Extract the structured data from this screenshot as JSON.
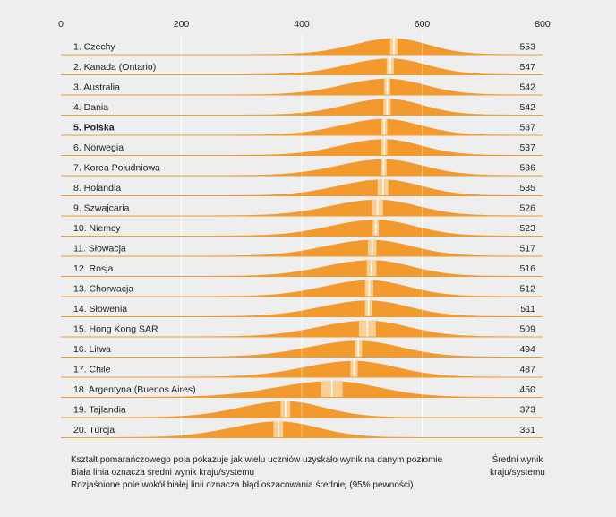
{
  "chart_data": {
    "type": "area",
    "xlim": [
      0,
      800
    ],
    "x_ticks": [
      "0",
      "200",
      "400",
      "600",
      "800"
    ],
    "grid": true,
    "colors": {
      "fill": "#f29a2e",
      "mean_line": "#ffffff",
      "confidence_band": "#fbd9a8",
      "grid": "#ffffff",
      "baseline": "#f29a2e"
    },
    "series": [
      {
        "name": "1. Czechy",
        "mean": 553,
        "ci": 6,
        "sd": 62,
        "bold": false
      },
      {
        "name": "2. Kanada (Ontario)",
        "mean": 547,
        "ci": 6,
        "sd": 66,
        "bold": false
      },
      {
        "name": "3. Australia",
        "mean": 542,
        "ci": 5,
        "sd": 68,
        "bold": false
      },
      {
        "name": "4. Dania",
        "mean": 542,
        "ci": 6,
        "sd": 64,
        "bold": false
      },
      {
        "name": "5. Polska",
        "mean": 537,
        "ci": 5,
        "sd": 66,
        "bold": true
      },
      {
        "name": "6. Norwegia",
        "mean": 537,
        "ci": 5,
        "sd": 66,
        "bold": false
      },
      {
        "name": "7. Korea Południowa",
        "mean": 536,
        "ci": 5,
        "sd": 70,
        "bold": false
      },
      {
        "name": "8. Holandia",
        "mean": 535,
        "ci": 9,
        "sd": 68,
        "bold": false
      },
      {
        "name": "9. Szwajcaria",
        "mean": 526,
        "ci": 9,
        "sd": 72,
        "bold": false
      },
      {
        "name": "10. Niemcy",
        "mean": 523,
        "ci": 5,
        "sd": 70,
        "bold": false
      },
      {
        "name": "11. Słowacja",
        "mean": 517,
        "ci": 7,
        "sd": 72,
        "bold": false
      },
      {
        "name": "12. Rosja",
        "mean": 516,
        "ci": 8,
        "sd": 72,
        "bold": false
      },
      {
        "name": "13. Chorwacja",
        "mean": 512,
        "ci": 7,
        "sd": 70,
        "bold": false
      },
      {
        "name": "14. Słowenia",
        "mean": 511,
        "ci": 6,
        "sd": 72,
        "bold": false
      },
      {
        "name": "15. Hong Kong SAR",
        "mean": 509,
        "ci": 14,
        "sd": 74,
        "bold": false
      },
      {
        "name": "16. Litwa",
        "mean": 494,
        "ci": 6,
        "sd": 76,
        "bold": false
      },
      {
        "name": "17. Chile",
        "mean": 487,
        "ci": 6,
        "sd": 76,
        "bold": false
      },
      {
        "name": "18. Argentyna (Buenos Aires)",
        "mean": 450,
        "ci": 18,
        "sd": 85,
        "bold": false
      },
      {
        "name": "19. Tajlandia",
        "mean": 373,
        "ci": 8,
        "sd": 70,
        "bold": false
      },
      {
        "name": "20. Turcja",
        "mean": 361,
        "ci": 8,
        "sd": 72,
        "bold": false
      }
    ]
  },
  "legend": {
    "line1": "Kształt pomarańczowego pola pokazuje jak wielu uczniów uzyskało wynik na danym poziomie",
    "line2": "Biała linia oznacza średni wynik kraju/systemu",
    "line3": "Rozjaśnione pole wokół białej linii oznacza błąd oszacowania średniej (95% pewności)"
  },
  "score_header": {
    "line1": "Średni wynik",
    "line2": "kraju/systemu"
  }
}
